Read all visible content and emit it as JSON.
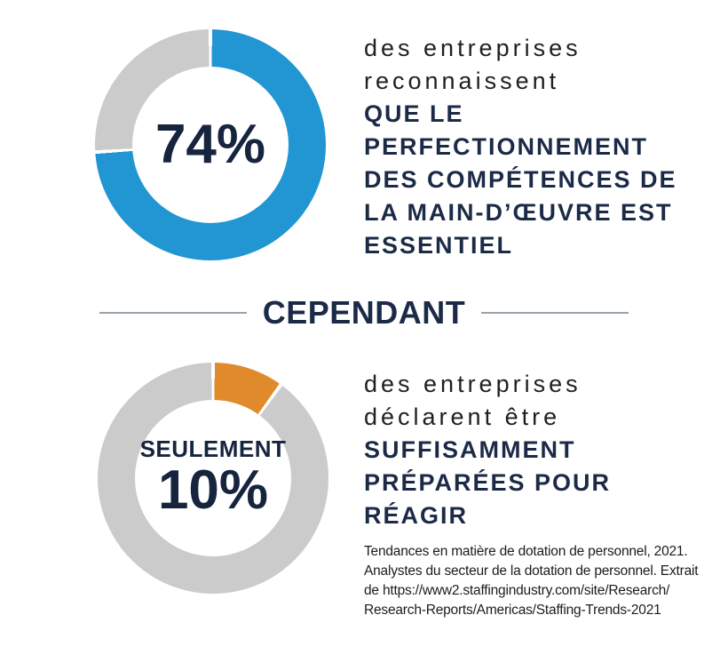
{
  "colors": {
    "accent_blue": "#2196D3",
    "accent_orange": "#E08A2B",
    "ring_gray": "#CBCBCB",
    "navy_text": "#1B2A46",
    "light_text": "#1F1F1F",
    "divider_line": "#9AA5AE",
    "citation_text": "#1C1C1C"
  },
  "chart_data": [
    {
      "type": "pie",
      "subtype": "donut",
      "values": [
        74,
        26
      ],
      "colors": [
        "#2196D3",
        "#CBCBCB"
      ],
      "center_label": "74%",
      "start_angle_deg": 0,
      "direction": "clockwise",
      "segment_gap": "thin white line between segments"
    },
    {
      "type": "pie",
      "subtype": "donut",
      "values": [
        10,
        90
      ],
      "colors": [
        "#E08A2B",
        "#CBCBCB"
      ],
      "center_label_small": "SEULEMENT",
      "center_label": "10%",
      "start_angle_deg": 0,
      "direction": "clockwise",
      "segment_gap": "thin white line between segments"
    }
  ],
  "top_section": {
    "light_lines": [
      "des entreprises",
      "reconnaissent"
    ],
    "bold_lines": [
      "QUE LE",
      "PERFECTIONNEMENT",
      "DES COMPÉTENCES DE",
      "LA MAIN-D’ŒUVRE EST",
      "ESSENTIEL"
    ]
  },
  "divider": {
    "label": "CEPENDANT"
  },
  "bottom_section": {
    "light_lines": [
      "des entreprises",
      "déclarent être"
    ],
    "bold_lines": [
      "SUFFISAMMENT",
      "PRÉPARÉES POUR",
      "RÉAGIR"
    ]
  },
  "citation_lines": [
    "Tendances en matière de dotation de personnel, 2021.",
    "Analystes du secteur de la dotation de personnel. Extrait",
    "de https://www2.staffingindustry.com/site/Research/",
    "Research-Reports/Americas/Staffing-Trends-2021"
  ]
}
